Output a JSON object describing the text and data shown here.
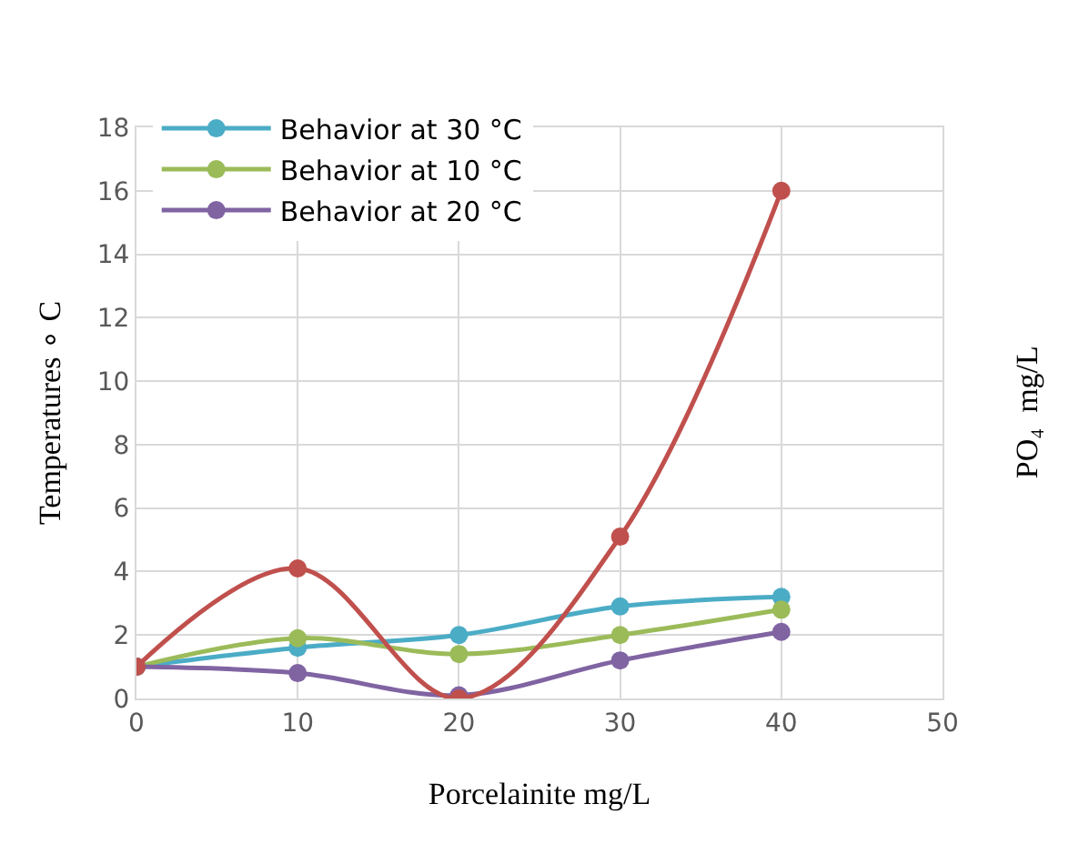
{
  "chart_data": {
    "type": "line",
    "xlabel": "Porcelainite mg/L",
    "ylabel": "Temperatures ∘ C",
    "y2label": "PO₄  mg/L",
    "x": [
      0,
      10,
      20,
      30,
      40
    ],
    "series": [
      {
        "name": "Behavior at 30 °C",
        "color": "#4bacc6",
        "values": [
          1,
          1.6,
          2,
          2.9,
          3.2
        ]
      },
      {
        "name": "Behavior at 10 °C",
        "color": "#9bbb59",
        "values": [
          1,
          1.9,
          1.4,
          2,
          2.8
        ]
      },
      {
        "name": "Behavior at 20 °C",
        "color": "#8064a2",
        "values": [
          1,
          0.8,
          0.1,
          1.2,
          2.1
        ]
      },
      {
        "color": "#c0504d",
        "values": [
          1,
          4.1,
          0,
          5.1,
          16
        ]
      }
    ],
    "xlim": [
      0,
      50
    ],
    "xticks": [
      0,
      10,
      20,
      30,
      40,
      50
    ],
    "ylim": [
      0,
      18
    ],
    "yticks": [
      0,
      2,
      4,
      6,
      8,
      10,
      12,
      14,
      16,
      18
    ],
    "grid": true,
    "legend": "top left",
    "marker": "circle",
    "line_style": "solid"
  }
}
